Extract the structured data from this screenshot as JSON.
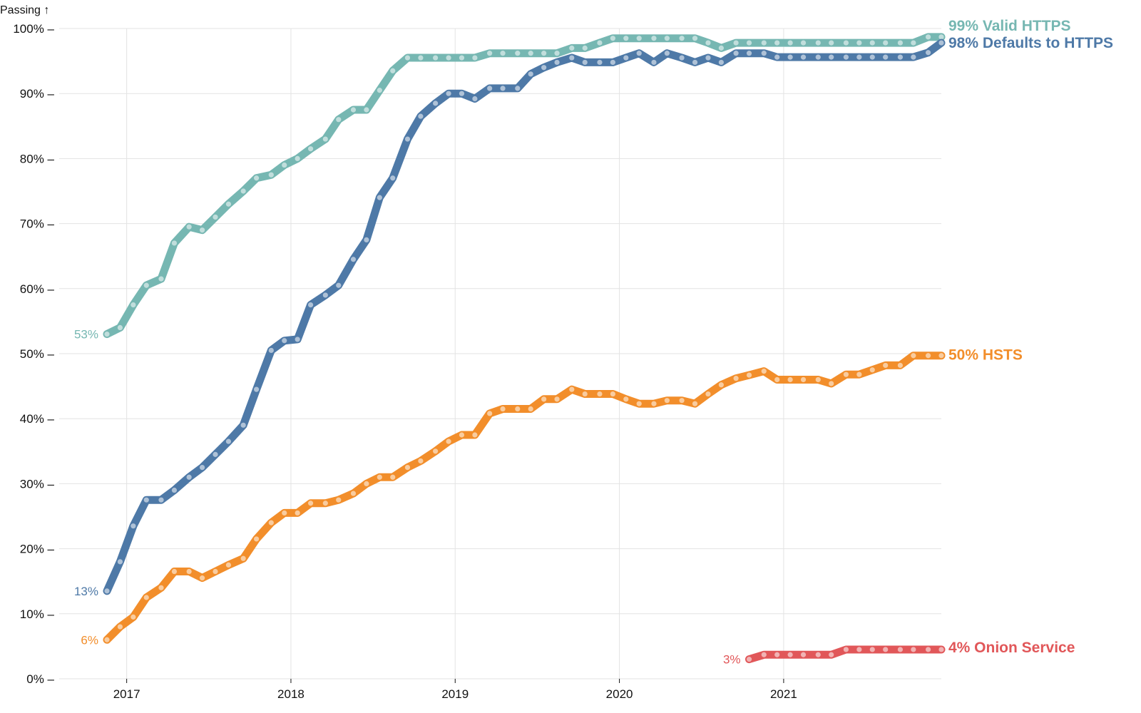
{
  "chart_data": {
    "type": "line",
    "title": "",
    "ylabel": "Passing ↑",
    "xlabel": "",
    "xlim": [
      2016.88,
      2021.96
    ],
    "ylim": [
      0,
      100
    ],
    "x_ticks": [
      2017,
      2018,
      2019,
      2020,
      2021
    ],
    "x_tick_labels": [
      "2017",
      "2018",
      "2019",
      "2020",
      "2021"
    ],
    "y_ticks": [
      0,
      10,
      20,
      30,
      40,
      50,
      60,
      70,
      80,
      90,
      100
    ],
    "y_tick_labels": [
      "0% –",
      "10% –",
      "20% –",
      "30% –",
      "40% –",
      "50% –",
      "60% –",
      "70% –",
      "80% –",
      "90% –",
      "100% –"
    ],
    "grid": true,
    "series": [
      {
        "name": "Valid HTTPS",
        "color": "#76b7b2",
        "start_label": "53%",
        "end_label": "99% Valid HTTPS",
        "points": [
          [
            2016.88,
            53
          ],
          [
            2016.96,
            54
          ],
          [
            2017.04,
            57.5
          ],
          [
            2017.12,
            60.5
          ],
          [
            2017.21,
            61.5
          ],
          [
            2017.29,
            67
          ],
          [
            2017.38,
            69.5
          ],
          [
            2017.46,
            69
          ],
          [
            2017.54,
            71
          ],
          [
            2017.62,
            73
          ],
          [
            2017.71,
            75
          ],
          [
            2017.79,
            77
          ],
          [
            2017.88,
            77.5
          ],
          [
            2017.96,
            79
          ],
          [
            2018.04,
            80
          ],
          [
            2018.12,
            81.5
          ],
          [
            2018.21,
            83
          ],
          [
            2018.29,
            86
          ],
          [
            2018.38,
            87.5
          ],
          [
            2018.46,
            87.5
          ],
          [
            2018.54,
            90.5
          ],
          [
            2018.62,
            93.5
          ],
          [
            2018.71,
            95.5
          ],
          [
            2018.79,
            95.5
          ],
          [
            2018.88,
            95.5
          ],
          [
            2018.96,
            95.5
          ],
          [
            2019.04,
            95.5
          ],
          [
            2019.12,
            95.5
          ],
          [
            2019.21,
            96.2
          ],
          [
            2019.29,
            96.2
          ],
          [
            2019.38,
            96.2
          ],
          [
            2019.46,
            96.2
          ],
          [
            2019.54,
            96.2
          ],
          [
            2019.62,
            96.2
          ],
          [
            2019.71,
            97
          ],
          [
            2019.79,
            97
          ],
          [
            2019.88,
            97.8
          ],
          [
            2019.96,
            98.5
          ],
          [
            2020.04,
            98.5
          ],
          [
            2020.12,
            98.5
          ],
          [
            2020.21,
            98.5
          ],
          [
            2020.29,
            98.5
          ],
          [
            2020.38,
            98.5
          ],
          [
            2020.46,
            98.5
          ],
          [
            2020.54,
            97.8
          ],
          [
            2020.62,
            97
          ],
          [
            2020.71,
            97.8
          ],
          [
            2020.79,
            97.8
          ],
          [
            2020.88,
            97.8
          ],
          [
            2020.96,
            97.8
          ],
          [
            2021.04,
            97.8
          ],
          [
            2021.12,
            97.8
          ],
          [
            2021.21,
            97.8
          ],
          [
            2021.29,
            97.8
          ],
          [
            2021.38,
            97.8
          ],
          [
            2021.46,
            97.8
          ],
          [
            2021.54,
            97.8
          ],
          [
            2021.62,
            97.8
          ],
          [
            2021.71,
            97.8
          ],
          [
            2021.79,
            97.8
          ],
          [
            2021.88,
            98.7
          ],
          [
            2021.96,
            98.7
          ]
        ]
      },
      {
        "name": "Defaults to HTTPS",
        "color": "#4e79a7",
        "start_label": "13%",
        "end_label": "98% Defaults to HTTPS",
        "points": [
          [
            2016.88,
            13.5
          ],
          [
            2016.96,
            18
          ],
          [
            2017.04,
            23.5
          ],
          [
            2017.12,
            27.5
          ],
          [
            2017.21,
            27.5
          ],
          [
            2017.29,
            29
          ],
          [
            2017.38,
            31
          ],
          [
            2017.46,
            32.5
          ],
          [
            2017.54,
            34.5
          ],
          [
            2017.62,
            36.5
          ],
          [
            2017.71,
            39
          ],
          [
            2017.79,
            44.5
          ],
          [
            2017.88,
            50.5
          ],
          [
            2017.96,
            52
          ],
          [
            2018.04,
            52.2
          ],
          [
            2018.12,
            57.5
          ],
          [
            2018.21,
            59
          ],
          [
            2018.29,
            60.5
          ],
          [
            2018.38,
            64.5
          ],
          [
            2018.46,
            67.5
          ],
          [
            2018.54,
            74
          ],
          [
            2018.62,
            77
          ],
          [
            2018.71,
            83
          ],
          [
            2018.79,
            86.5
          ],
          [
            2018.88,
            88.5
          ],
          [
            2018.96,
            90
          ],
          [
            2019.04,
            90
          ],
          [
            2019.12,
            89.2
          ],
          [
            2019.21,
            90.8
          ],
          [
            2019.29,
            90.8
          ],
          [
            2019.38,
            90.8
          ],
          [
            2019.46,
            93
          ],
          [
            2019.54,
            94
          ],
          [
            2019.62,
            94.8
          ],
          [
            2019.71,
            95.5
          ],
          [
            2019.79,
            94.8
          ],
          [
            2019.88,
            94.8
          ],
          [
            2019.96,
            94.8
          ],
          [
            2020.04,
            95.5
          ],
          [
            2020.12,
            96.2
          ],
          [
            2020.21,
            94.8
          ],
          [
            2020.29,
            96.2
          ],
          [
            2020.38,
            95.5
          ],
          [
            2020.46,
            94.8
          ],
          [
            2020.54,
            95.5
          ],
          [
            2020.62,
            94.8
          ],
          [
            2020.71,
            96.2
          ],
          [
            2020.79,
            96.2
          ],
          [
            2020.88,
            96.2
          ],
          [
            2020.96,
            95.6
          ],
          [
            2021.04,
            95.6
          ],
          [
            2021.12,
            95.6
          ],
          [
            2021.21,
            95.6
          ],
          [
            2021.29,
            95.6
          ],
          [
            2021.38,
            95.6
          ],
          [
            2021.46,
            95.6
          ],
          [
            2021.54,
            95.6
          ],
          [
            2021.62,
            95.6
          ],
          [
            2021.71,
            95.6
          ],
          [
            2021.79,
            95.6
          ],
          [
            2021.88,
            96.3
          ],
          [
            2021.96,
            97.8
          ]
        ]
      },
      {
        "name": "HSTS",
        "color": "#f28e2b",
        "start_label": "6%",
        "end_label": "50% HSTS",
        "points": [
          [
            2016.88,
            6
          ],
          [
            2016.96,
            8
          ],
          [
            2017.04,
            9.5
          ],
          [
            2017.12,
            12.5
          ],
          [
            2017.21,
            14
          ],
          [
            2017.29,
            16.5
          ],
          [
            2017.38,
            16.5
          ],
          [
            2017.46,
            15.5
          ],
          [
            2017.54,
            16.5
          ],
          [
            2017.62,
            17.5
          ],
          [
            2017.71,
            18.5
          ],
          [
            2017.79,
            21.5
          ],
          [
            2017.88,
            24
          ],
          [
            2017.96,
            25.5
          ],
          [
            2018.04,
            25.5
          ],
          [
            2018.12,
            27
          ],
          [
            2018.21,
            27
          ],
          [
            2018.29,
            27.5
          ],
          [
            2018.38,
            28.5
          ],
          [
            2018.46,
            30
          ],
          [
            2018.54,
            31
          ],
          [
            2018.62,
            31
          ],
          [
            2018.71,
            32.5
          ],
          [
            2018.79,
            33.5
          ],
          [
            2018.88,
            35
          ],
          [
            2018.96,
            36.5
          ],
          [
            2019.04,
            37.5
          ],
          [
            2019.12,
            37.5
          ],
          [
            2019.21,
            40.8
          ],
          [
            2019.29,
            41.5
          ],
          [
            2019.38,
            41.5
          ],
          [
            2019.46,
            41.5
          ],
          [
            2019.54,
            43
          ],
          [
            2019.62,
            43
          ],
          [
            2019.71,
            44.5
          ],
          [
            2019.79,
            43.8
          ],
          [
            2019.88,
            43.8
          ],
          [
            2019.96,
            43.8
          ],
          [
            2020.04,
            43
          ],
          [
            2020.12,
            42.3
          ],
          [
            2020.21,
            42.3
          ],
          [
            2020.29,
            42.8
          ],
          [
            2020.38,
            42.8
          ],
          [
            2020.46,
            42.3
          ],
          [
            2020.54,
            43.8
          ],
          [
            2020.62,
            45.2
          ],
          [
            2020.71,
            46.2
          ],
          [
            2020.79,
            46.7
          ],
          [
            2020.88,
            47.3
          ],
          [
            2020.96,
            46
          ],
          [
            2021.04,
            46
          ],
          [
            2021.12,
            46
          ],
          [
            2021.21,
            46
          ],
          [
            2021.29,
            45.4
          ],
          [
            2021.38,
            46.8
          ],
          [
            2021.46,
            46.8
          ],
          [
            2021.54,
            47.5
          ],
          [
            2021.62,
            48.2
          ],
          [
            2021.71,
            48.2
          ],
          [
            2021.79,
            49.7
          ],
          [
            2021.88,
            49.7
          ],
          [
            2021.96,
            49.7
          ]
        ]
      },
      {
        "name": "Onion Service",
        "color": "#e15759",
        "start_label": "3%",
        "end_label": "4% Onion Service",
        "points": [
          [
            2020.79,
            3
          ],
          [
            2020.88,
            3.7
          ],
          [
            2020.96,
            3.7
          ],
          [
            2021.04,
            3.7
          ],
          [
            2021.12,
            3.7
          ],
          [
            2021.21,
            3.7
          ],
          [
            2021.29,
            3.7
          ],
          [
            2021.38,
            4.5
          ],
          [
            2021.46,
            4.5
          ],
          [
            2021.54,
            4.5
          ],
          [
            2021.62,
            4.5
          ],
          [
            2021.71,
            4.5
          ],
          [
            2021.79,
            4.5
          ],
          [
            2021.88,
            4.5
          ],
          [
            2021.96,
            4.5
          ]
        ]
      }
    ]
  }
}
